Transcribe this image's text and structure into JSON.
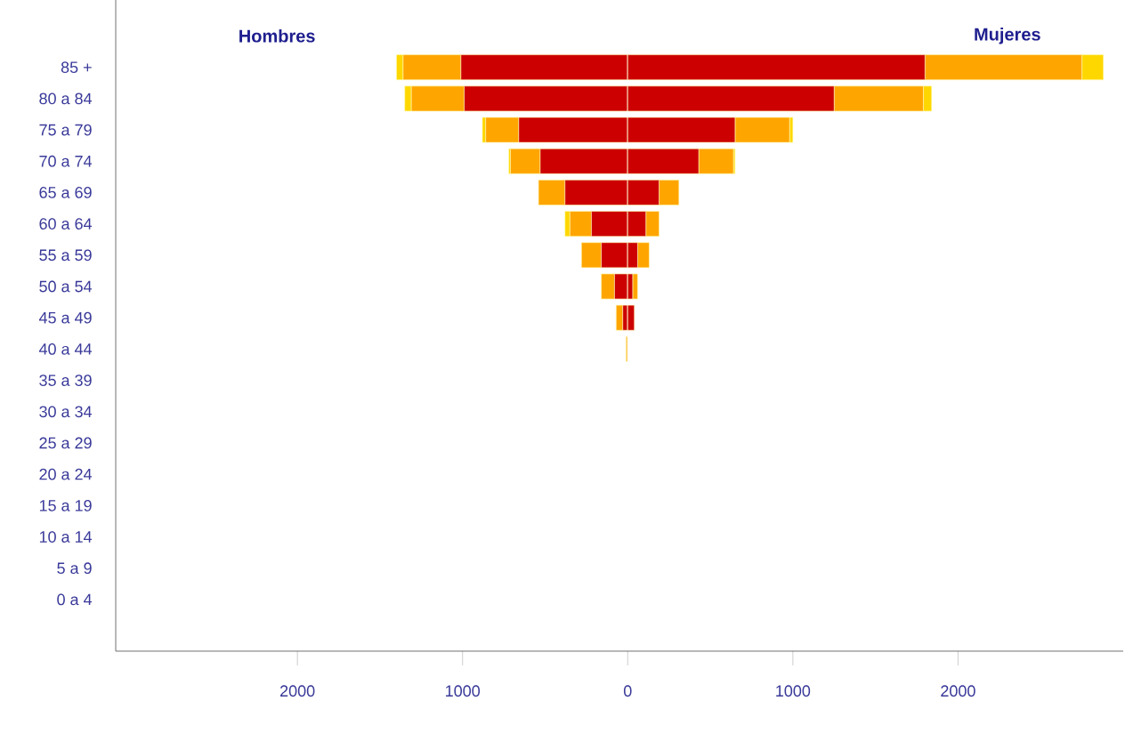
{
  "chart_data": {
    "type": "bar",
    "orientation": "horizontal",
    "stacked": true,
    "categories": [
      "85 +",
      "80 a 84",
      "75 a 79",
      "70 a 74",
      "65 a 69",
      "60 a 64",
      "55 a 59",
      "50 a 54",
      "45 a 49",
      "40 a 44",
      "35 a 39",
      "30 a 34",
      "25 a 29",
      "20 a 24",
      "15 a 19",
      "10 a 14",
      "5 a 9",
      "0 a 4"
    ],
    "series": [
      {
        "color": "#cc0000",
        "values": [
          -1010,
          -990,
          -660,
          -530,
          -380,
          -220,
          -160,
          -80,
          -30,
          0,
          0,
          0,
          0,
          0,
          0,
          0,
          0,
          0
        ]
      },
      {
        "color": "#ffa500",
        "values": [
          -350,
          -320,
          -200,
          -180,
          -160,
          -130,
          -120,
          -80,
          -40,
          -10,
          0,
          0,
          0,
          0,
          0,
          0,
          0,
          0
        ]
      },
      {
        "color": "#ffd700",
        "values": [
          -40,
          -40,
          -20,
          -10,
          0,
          -30,
          0,
          0,
          0,
          0,
          0,
          0,
          0,
          0,
          0,
          0,
          0,
          0
        ]
      },
      {
        "color": "#cc0000",
        "values": [
          1800,
          1250,
          650,
          430,
          190,
          110,
          60,
          30,
          40,
          0,
          0,
          0,
          0,
          0,
          0,
          0,
          0,
          0
        ]
      },
      {
        "color": "#ffa500",
        "values": [
          950,
          540,
          330,
          210,
          120,
          80,
          70,
          30,
          0,
          0,
          0,
          0,
          0,
          0,
          0,
          0,
          0,
          0
        ]
      },
      {
        "color": "#ffd700",
        "values": [
          130,
          50,
          20,
          10,
          0,
          0,
          0,
          0,
          0,
          0,
          0,
          0,
          0,
          0,
          0,
          0,
          0,
          0
        ]
      }
    ],
    "xlim": [
      -3100,
      3000
    ],
    "xticks": [
      {
        "value": -2000,
        "label": "2000"
      },
      {
        "value": -1000,
        "label": "1000"
      },
      0,
      1000,
      2000
    ],
    "ref_lines": [
      {
        "axis": "x",
        "value": 0,
        "color": "#ffffff"
      }
    ],
    "annotations": [
      "Hombres",
      "Mujeres"
    ]
  }
}
